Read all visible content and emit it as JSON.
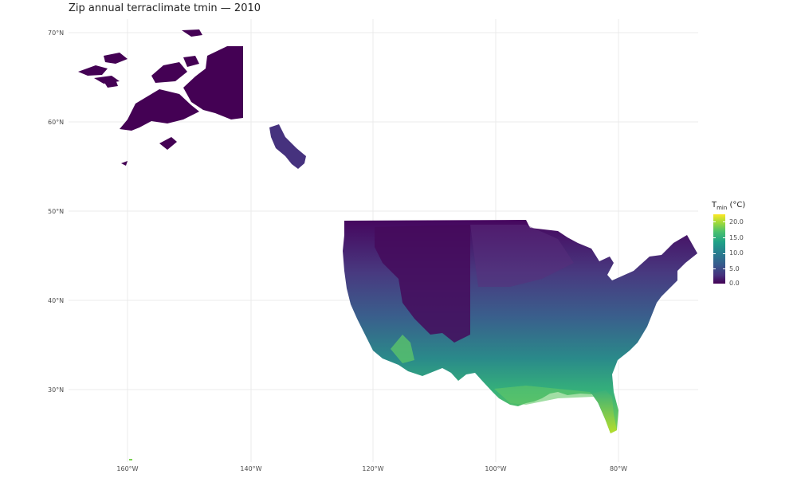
{
  "title": "Zip annual terraclimate tmin — 2010",
  "y_axis": {
    "ticks": [
      {
        "label": "70°N",
        "lat": 70
      },
      {
        "label": "60°N",
        "lat": 60
      },
      {
        "label": "50°N",
        "lat": 50
      },
      {
        "label": "40°N",
        "lat": 40
      },
      {
        "label": "30°N",
        "lat": 30
      }
    ]
  },
  "x_axis": {
    "ticks": [
      {
        "label": "160°W",
        "lon": -160
      },
      {
        "label": "140°W",
        "lon": -140
      },
      {
        "label": "120°W",
        "lon": -120
      },
      {
        "label": "100°W",
        "lon": -100
      },
      {
        "label": "80°W",
        "lon": -80
      }
    ]
  },
  "legend": {
    "title_main": "T",
    "title_sub": "min",
    "title_unit": " (°C)",
    "range": [
      0,
      22
    ],
    "labels": [
      "20.0",
      "15.0",
      "10.0",
      "5.0",
      "0.0"
    ],
    "colormap": "viridis"
  },
  "colors": {
    "low": "#440154",
    "mid": "#277f8e",
    "high": "#fde725",
    "grid": "#ebebeb"
  }
}
